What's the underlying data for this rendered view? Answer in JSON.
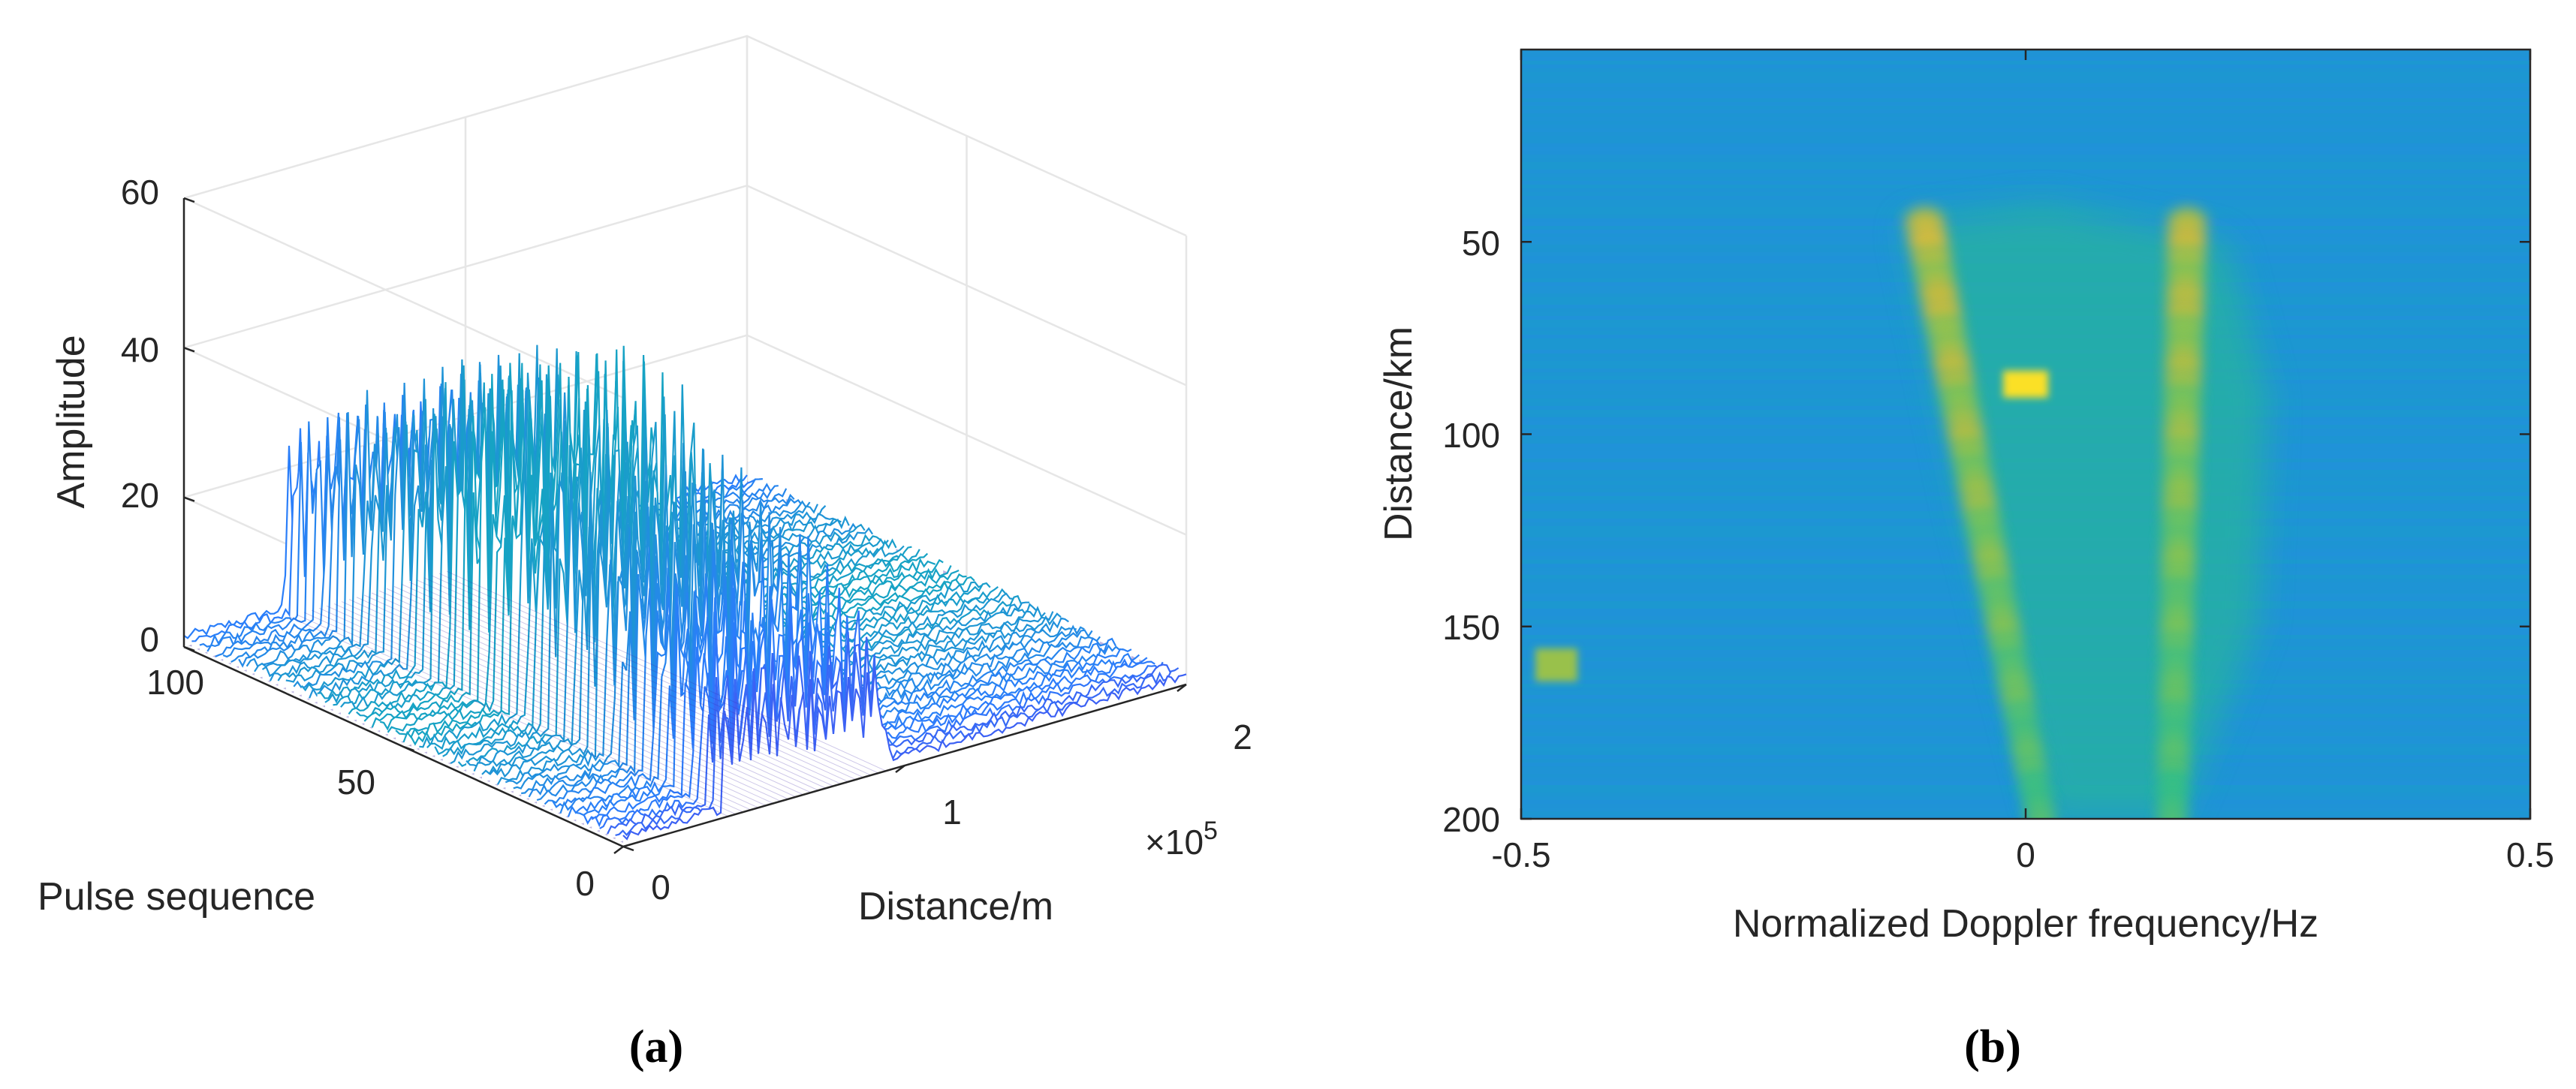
{
  "chart_data": [
    {
      "id": "a",
      "type": "surface3d",
      "caption": "(a)",
      "title": "",
      "xlabel": "Distance/m",
      "ylabel": "Pulse sequence",
      "zlabel": "Amplitude",
      "x_ticks": [
        "0",
        "1",
        "2"
      ],
      "x_tick_values": [
        0,
        1,
        2
      ],
      "x_exponent_label": "×10",
      "x_exponent_power": "5",
      "xlim": [
        0,
        2
      ],
      "y_ticks": [
        "0",
        "50",
        "100"
      ],
      "y_tick_values": [
        0,
        50,
        100
      ],
      "ylim": [
        0,
        100
      ],
      "z_ticks": [
        "0",
        "20",
        "40",
        "60"
      ],
      "z_tick_values": [
        0,
        20,
        40,
        60
      ],
      "zlim": [
        0,
        60
      ],
      "signal_range_x": [
        0.35,
        0.95
      ],
      "peak_amplitude": 45,
      "noise_floor": 2,
      "colormap": "parula"
    },
    {
      "id": "b",
      "type": "heatmap",
      "caption": "(b)",
      "title": "",
      "xlabel": "Normalized Doppler frequency/Hz",
      "ylabel": "Distance/km",
      "x_ticks": [
        "-0.5",
        "0",
        "0.5"
      ],
      "x_tick_values": [
        -0.5,
        0,
        0.5
      ],
      "xlim": [
        -0.5,
        0.5
      ],
      "y_ticks": [
        "50",
        "100",
        "150",
        "200"
      ],
      "y_tick_values": [
        50,
        100,
        150,
        200
      ],
      "ylim": [
        0,
        200
      ],
      "y_reversed": true,
      "features": [
        {
          "name": "left-track",
          "x_start": -0.1,
          "y_start": 45,
          "x_end": 0.015,
          "y_end": 200,
          "intensity": 0.8
        },
        {
          "name": "right-track",
          "x_start": 0.16,
          "y_start": 45,
          "x_end": 0.145,
          "y_end": 200,
          "intensity": 0.75
        },
        {
          "name": "hot-spot",
          "x": 0.0,
          "y": 87,
          "intensity": 0.95
        },
        {
          "name": "isolated-target",
          "x": -0.465,
          "y": 160,
          "intensity": 0.7
        }
      ],
      "colormap": "parula"
    }
  ],
  "colors": {
    "background": "#ffffff",
    "axis": "#262626",
    "grid": "#e6e6e6",
    "parula_low": "#3e26a8",
    "parula_bg": "#1f96d4",
    "parula_high": "#f9fb15"
  }
}
